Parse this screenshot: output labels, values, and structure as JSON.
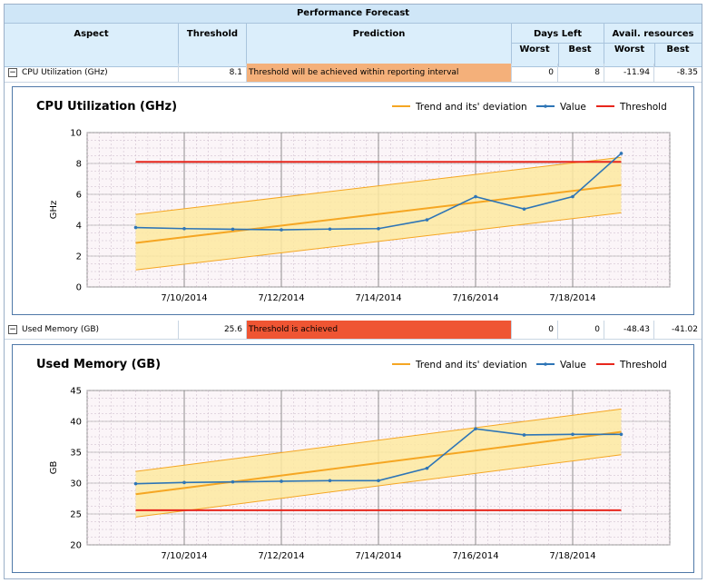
{
  "table": {
    "title": "Performance Forecast",
    "headers": {
      "aspect": "Aspect",
      "threshold": "Threshold",
      "prediction": "Prediction",
      "days_left": "Days Left",
      "days_worst": "Worst",
      "days_best": "Best",
      "avail": "Avail. resources",
      "avail_worst": "Worst",
      "avail_best": "Best"
    },
    "rows": [
      {
        "expander": "−",
        "aspect": "CPU Utilization (GHz)",
        "threshold": "8.1",
        "prediction": "Threshold will be achieved within reporting interval",
        "prediction_color": "#f4b07a",
        "days_worst": "0",
        "days_best": "8",
        "avail_worst": "-11.94",
        "avail_best": "-8.35"
      },
      {
        "expander": "−",
        "aspect": "Used Memory (GB)",
        "threshold": "25.6",
        "prediction": "Threshold is achieved",
        "prediction_color": "#ef5533",
        "days_worst": "0",
        "days_best": "0",
        "avail_worst": "-48.43",
        "avail_best": "-41.02"
      }
    ]
  },
  "chart_data": [
    {
      "type": "line",
      "title": "CPU Utilization (GHz)",
      "ylabel": "GHz",
      "ylim": [
        0,
        10
      ],
      "yticks": [
        0,
        2,
        4,
        6,
        8,
        10
      ],
      "xlim": [
        "2014-07-08",
        "2014-07-20"
      ],
      "xticks": [
        "7/10/2014",
        "7/12/2014",
        "7/14/2014",
        "7/16/2014",
        "7/18/2014"
      ],
      "xtick_dates": [
        "2014-07-10",
        "2014-07-12",
        "2014-07-14",
        "2014-07-16",
        "2014-07-18"
      ],
      "legend_position": "top-right",
      "legend": [
        "Trend and its' deviation",
        "Value",
        "Threshold"
      ],
      "colors": {
        "trend": "#f5a623",
        "band": "#fde9a0",
        "value": "#2e75b6",
        "threshold": "#e8261c"
      },
      "series": [
        {
          "name": "Value",
          "x": [
            "2014-07-09",
            "2014-07-10",
            "2014-07-11",
            "2014-07-12",
            "2014-07-13",
            "2014-07-14",
            "2014-07-15",
            "2014-07-16",
            "2014-07-17",
            "2014-07-18",
            "2014-07-19"
          ],
          "values": [
            3.85,
            3.78,
            3.74,
            3.7,
            3.75,
            3.78,
            4.35,
            5.85,
            5.05,
            5.85,
            8.65
          ]
        },
        {
          "name": "Trend",
          "x": [
            "2014-07-09",
            "2014-07-19"
          ],
          "values": [
            2.85,
            6.6
          ]
        },
        {
          "name": "Trend upper",
          "x": [
            "2014-07-09",
            "2014-07-19"
          ],
          "values": [
            4.7,
            8.4
          ]
        },
        {
          "name": "Trend lower",
          "x": [
            "2014-07-09",
            "2014-07-19"
          ],
          "values": [
            1.1,
            4.8
          ]
        },
        {
          "name": "Threshold",
          "x": [
            "2014-07-09",
            "2014-07-19"
          ],
          "values": [
            8.1,
            8.1
          ]
        }
      ]
    },
    {
      "type": "line",
      "title": "Used Memory (GB)",
      "ylabel": "GB",
      "ylim": [
        20,
        45
      ],
      "yticks": [
        20,
        25,
        30,
        35,
        40,
        45
      ],
      "xlim": [
        "2014-07-08",
        "2014-07-20"
      ],
      "xticks": [
        "7/10/2014",
        "7/12/2014",
        "7/14/2014",
        "7/16/2014",
        "7/18/2014"
      ],
      "xtick_dates": [
        "2014-07-10",
        "2014-07-12",
        "2014-07-14",
        "2014-07-16",
        "2014-07-18"
      ],
      "legend_position": "top-right",
      "legend": [
        "Trend and its' deviation",
        "Value",
        "Threshold"
      ],
      "colors": {
        "trend": "#f5a623",
        "band": "#fde9a0",
        "value": "#2e75b6",
        "threshold": "#e8261c"
      },
      "series": [
        {
          "name": "Value",
          "x": [
            "2014-07-09",
            "2014-07-10",
            "2014-07-11",
            "2014-07-12",
            "2014-07-13",
            "2014-07-14",
            "2014-07-15",
            "2014-07-16",
            "2014-07-17",
            "2014-07-18",
            "2014-07-19"
          ],
          "values": [
            29.9,
            30.1,
            30.2,
            30.3,
            30.4,
            30.4,
            32.4,
            38.8,
            37.8,
            37.9,
            37.9
          ]
        },
        {
          "name": "Trend",
          "x": [
            "2014-07-09",
            "2014-07-19"
          ],
          "values": [
            28.2,
            38.3
          ]
        },
        {
          "name": "Trend upper",
          "x": [
            "2014-07-09",
            "2014-07-19"
          ],
          "values": [
            31.9,
            42.0
          ]
        },
        {
          "name": "Trend lower",
          "x": [
            "2014-07-09",
            "2014-07-19"
          ],
          "values": [
            24.5,
            34.6
          ]
        },
        {
          "name": "Threshold",
          "x": [
            "2014-07-09",
            "2014-07-19"
          ],
          "values": [
            25.6,
            25.6
          ]
        }
      ]
    }
  ]
}
